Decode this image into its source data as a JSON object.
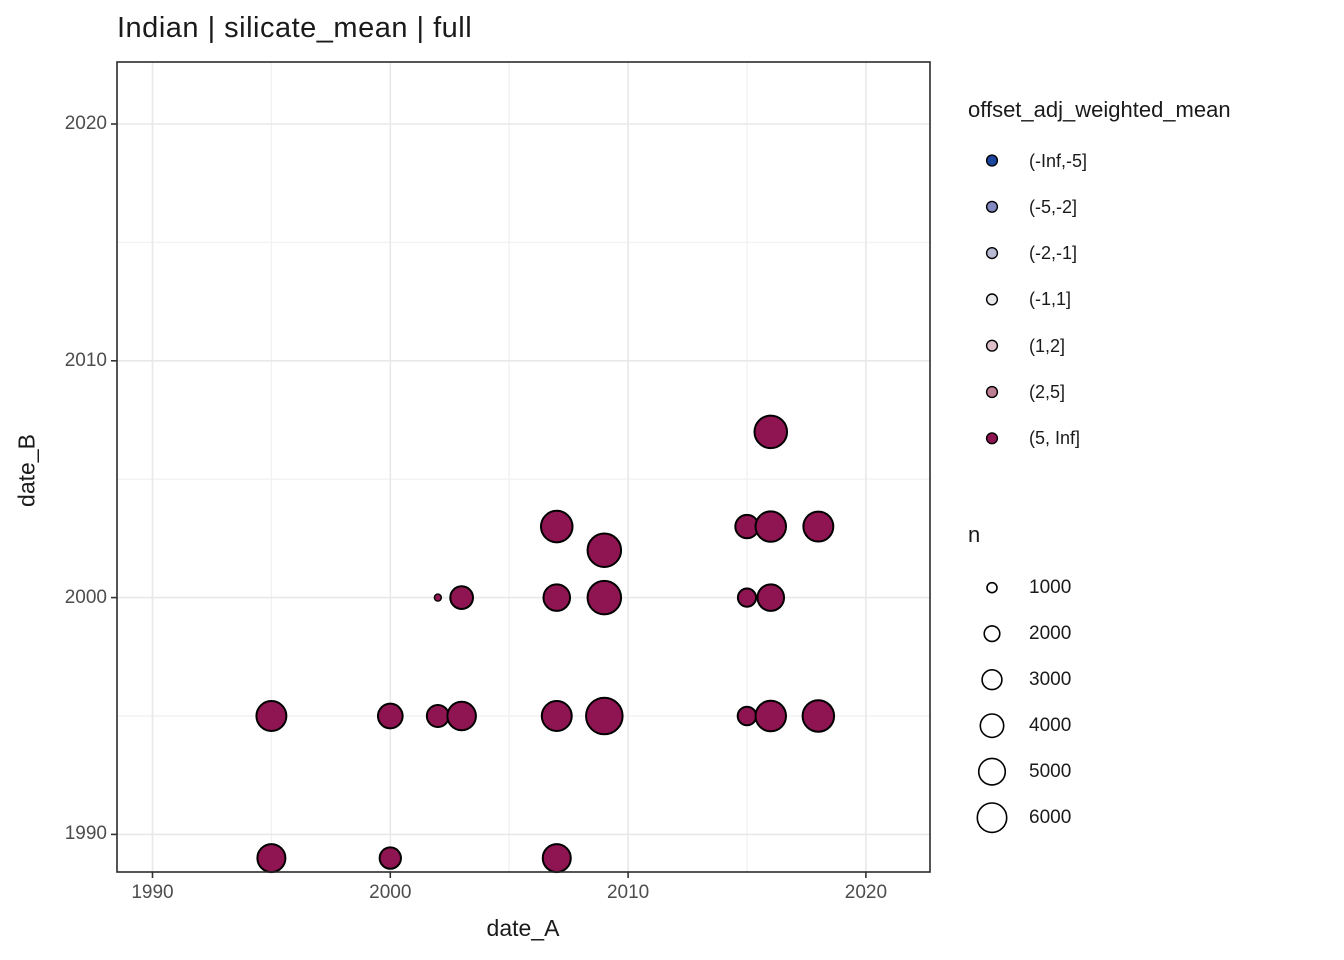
{
  "title": "Indian | silicate_mean | full",
  "axes": {
    "x": {
      "label": "date_A",
      "tick_labels": [
        "1990",
        "2000",
        "2010",
        "2020"
      ]
    },
    "y": {
      "label": "date_B",
      "tick_labels": [
        "2020",
        "2010",
        "2000",
        "1990"
      ]
    }
  },
  "legend_color": {
    "title": "offset_adj_weighted_mean",
    "items": [
      {
        "label": "(-Inf,-5]",
        "color": "#1B459E"
      },
      {
        "label": "(-5,-2]",
        "color": "#8289C0"
      },
      {
        "label": "(-2,-1]",
        "color": "#B9BBD5"
      },
      {
        "label": "(-1,1]",
        "color": "#E8E7EA"
      },
      {
        "label": "(1,2]",
        "color": "#DDC0CA"
      },
      {
        "label": "(2,5]",
        "color": "#BF7E92"
      },
      {
        "label": "(5, Inf]",
        "color": "#8E1552"
      }
    ]
  },
  "legend_size": {
    "title": "n",
    "items": [
      {
        "label": "1000",
        "n": 1000
      },
      {
        "label": "2000",
        "n": 2000
      },
      {
        "label": "3000",
        "n": 3000
      },
      {
        "label": "4000",
        "n": 4000
      },
      {
        "label": "5000",
        "n": 5000
      },
      {
        "label": "6000",
        "n": 6000
      }
    ]
  },
  "chart_data": {
    "type": "scatter",
    "title": "Indian | silicate_mean | full",
    "xlabel": "date_A",
    "ylabel": "date_B",
    "xlim": [
      1988.5,
      2022.7
    ],
    "ylim": [
      1988.4,
      2022.6
    ],
    "x_ticks": [
      1990,
      2000,
      2010,
      2020
    ],
    "y_ticks": [
      1990,
      2000,
      2010,
      2020
    ],
    "x_minor_ticks": [
      1995,
      2005,
      2015
    ],
    "y_minor_ticks": [
      1995,
      2005,
      2015
    ],
    "grid": true,
    "legend_position": "right",
    "color_variable": "offset_adj_weighted_mean",
    "size_variable": "n",
    "all_points_color_bin": "(5, Inf]",
    "point_fill": "#8E1552",
    "point_stroke": "#000000",
    "size_scale": {
      "slope": 0.2116,
      "intercept": -1.69
    },
    "points": [
      {
        "date_A": 1995,
        "date_B": 1995,
        "n": 6200
      },
      {
        "date_A": 1995,
        "date_B": 1989,
        "n": 5500
      },
      {
        "date_A": 2000,
        "date_B": 1995,
        "n": 4400
      },
      {
        "date_A": 2000,
        "date_B": 1989,
        "n": 3400
      },
      {
        "date_A": 2002,
        "date_B": 2000,
        "n": 600
      },
      {
        "date_A": 2002,
        "date_B": 1995,
        "n": 3600
      },
      {
        "date_A": 2003,
        "date_B": 2000,
        "n": 3800
      },
      {
        "date_A": 2003,
        "date_B": 1995,
        "n": 5700
      },
      {
        "date_A": 2007,
        "date_B": 2003,
        "n": 6800
      },
      {
        "date_A": 2007,
        "date_B": 2000,
        "n": 5000
      },
      {
        "date_A": 2007,
        "date_B": 1995,
        "n": 6200
      },
      {
        "date_A": 2007,
        "date_B": 1989,
        "n": 5500
      },
      {
        "date_A": 2009,
        "date_B": 2002,
        "n": 7600
      },
      {
        "date_A": 2009,
        "date_B": 2000,
        "n": 7600
      },
      {
        "date_A": 2009,
        "date_B": 1995,
        "n": 8900
      },
      {
        "date_A": 2015,
        "date_B": 2003,
        "n": 4000
      },
      {
        "date_A": 2015,
        "date_B": 2000,
        "n": 2600
      },
      {
        "date_A": 2015,
        "date_B": 1995,
        "n": 2700
      },
      {
        "date_A": 2016,
        "date_B": 2007,
        "n": 7200
      },
      {
        "date_A": 2016,
        "date_B": 2003,
        "n": 6400
      },
      {
        "date_A": 2016,
        "date_B": 2000,
        "n": 5000
      },
      {
        "date_A": 2016,
        "date_B": 1995,
        "n": 6400
      },
      {
        "date_A": 2018,
        "date_B": 2003,
        "n": 6200
      },
      {
        "date_A": 2018,
        "date_B": 1995,
        "n": 6800
      }
    ]
  }
}
